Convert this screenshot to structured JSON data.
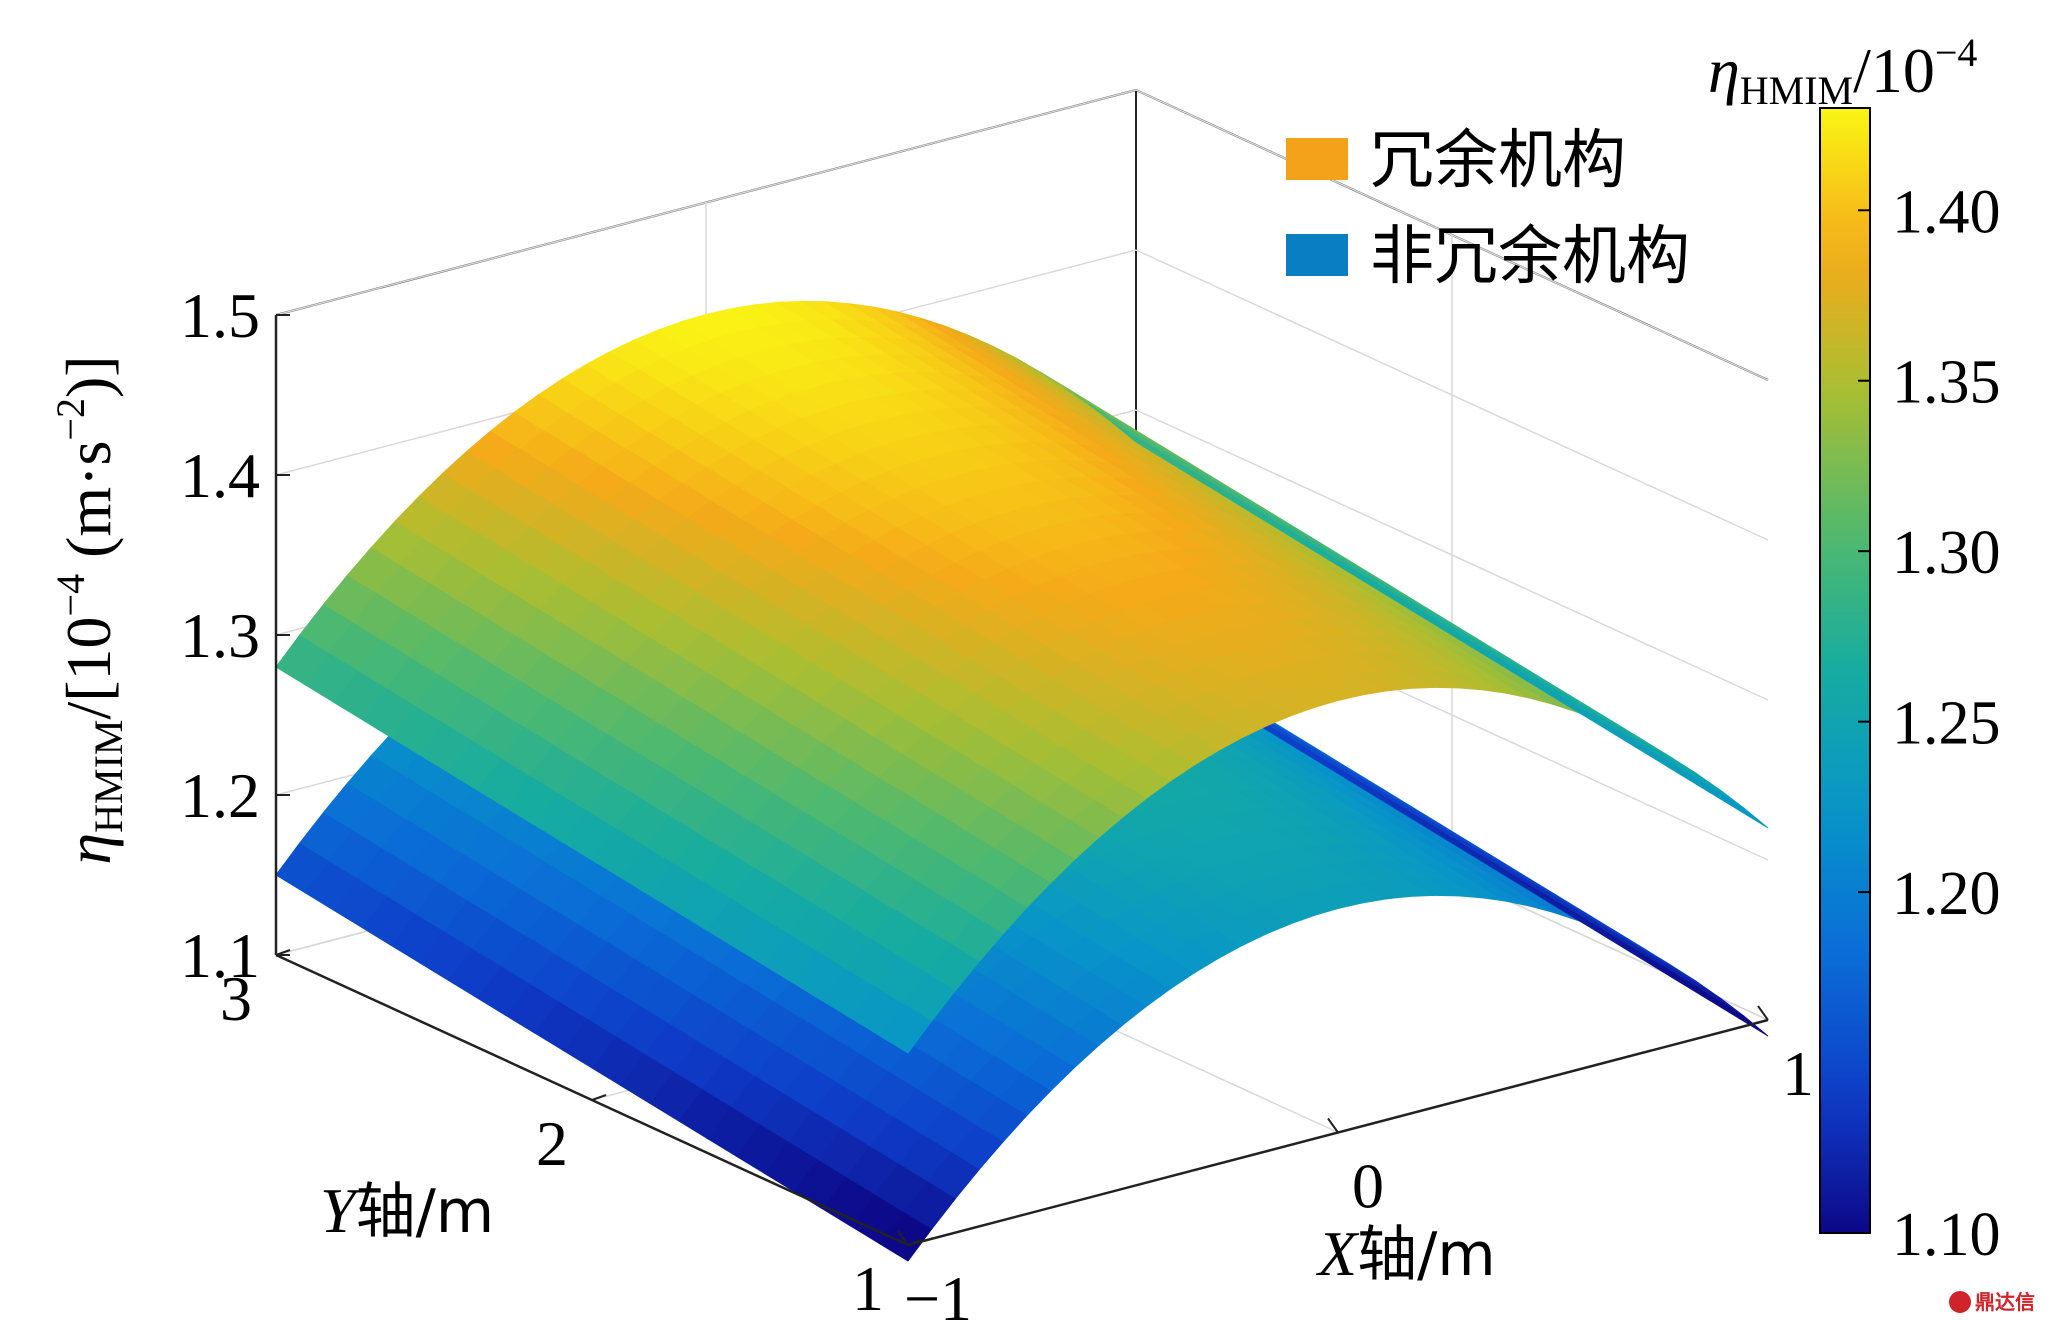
{
  "chart_data": {
    "type": "surface3d",
    "title": "",
    "xlabel": {
      "var": "X",
      "suffix": "轴/m"
    },
    "ylabel": {
      "var": "Y",
      "suffix": "轴/m"
    },
    "zlabel": {
      "eta": "η",
      "sub": "HMIM",
      "rest": "/[10",
      "exp": "−4",
      "unit": " (m·s",
      "uexp": "−2",
      "close": ")]"
    },
    "xlim": [
      -1,
      1
    ],
    "ylim": [
      1,
      3
    ],
    "zlim": [
      1.1,
      1.5
    ],
    "x_ticks": [
      "−1",
      "0",
      "1"
    ],
    "y_ticks": [
      "1",
      "2",
      "3"
    ],
    "z_ticks": [
      "1.1",
      "1.2",
      "1.3",
      "1.4",
      "1.5"
    ],
    "grid": true,
    "legend_position": "top-right",
    "legend": [
      {
        "name": "冗余机构",
        "color": "#F5A21B"
      },
      {
        "name": "非冗余机构",
        "color": "#0A7EC2"
      }
    ],
    "colorbar": {
      "title": {
        "eta": "η",
        "sub": "HMIM",
        "rest": "/10",
        "exp": "−4"
      },
      "range": [
        1.1,
        1.43
      ],
      "ticks": [
        "1.10",
        "1.20",
        "1.25",
        "1.30",
        "1.35",
        "1.40"
      ],
      "colormap": "parula"
    },
    "series": [
      {
        "name": "冗余机构",
        "formula": "z = 1.43 - 0.15 x^2 - 0.03 (3 - y)",
        "samples": [
          {
            "x": -1,
            "y": 3,
            "z": 1.28
          },
          {
            "x": 0,
            "y": 3,
            "z": 1.43
          },
          {
            "x": 1,
            "y": 3,
            "z": 1.28
          },
          {
            "x": -1,
            "y": 1,
            "z": 1.22
          },
          {
            "x": 0,
            "y": 1,
            "z": 1.37
          },
          {
            "x": 1,
            "y": 1,
            "z": 1.22
          }
        ]
      },
      {
        "name": "非冗余机构",
        "formula": "z = 1.30 - 0.15 x^2 - 0.03 (3 - y)",
        "samples": [
          {
            "x": -1,
            "y": 3,
            "z": 1.15
          },
          {
            "x": 0,
            "y": 3,
            "z": 1.3
          },
          {
            "x": 1,
            "y": 3,
            "z": 1.15
          },
          {
            "x": -1,
            "y": 1,
            "z": 1.09
          },
          {
            "x": 0,
            "y": 1,
            "z": 1.24
          },
          {
            "x": 1,
            "y": 1,
            "z": 1.09
          }
        ]
      }
    ]
  },
  "watermark": {
    "text": "鼎达信",
    "icon": "logo-icon"
  }
}
